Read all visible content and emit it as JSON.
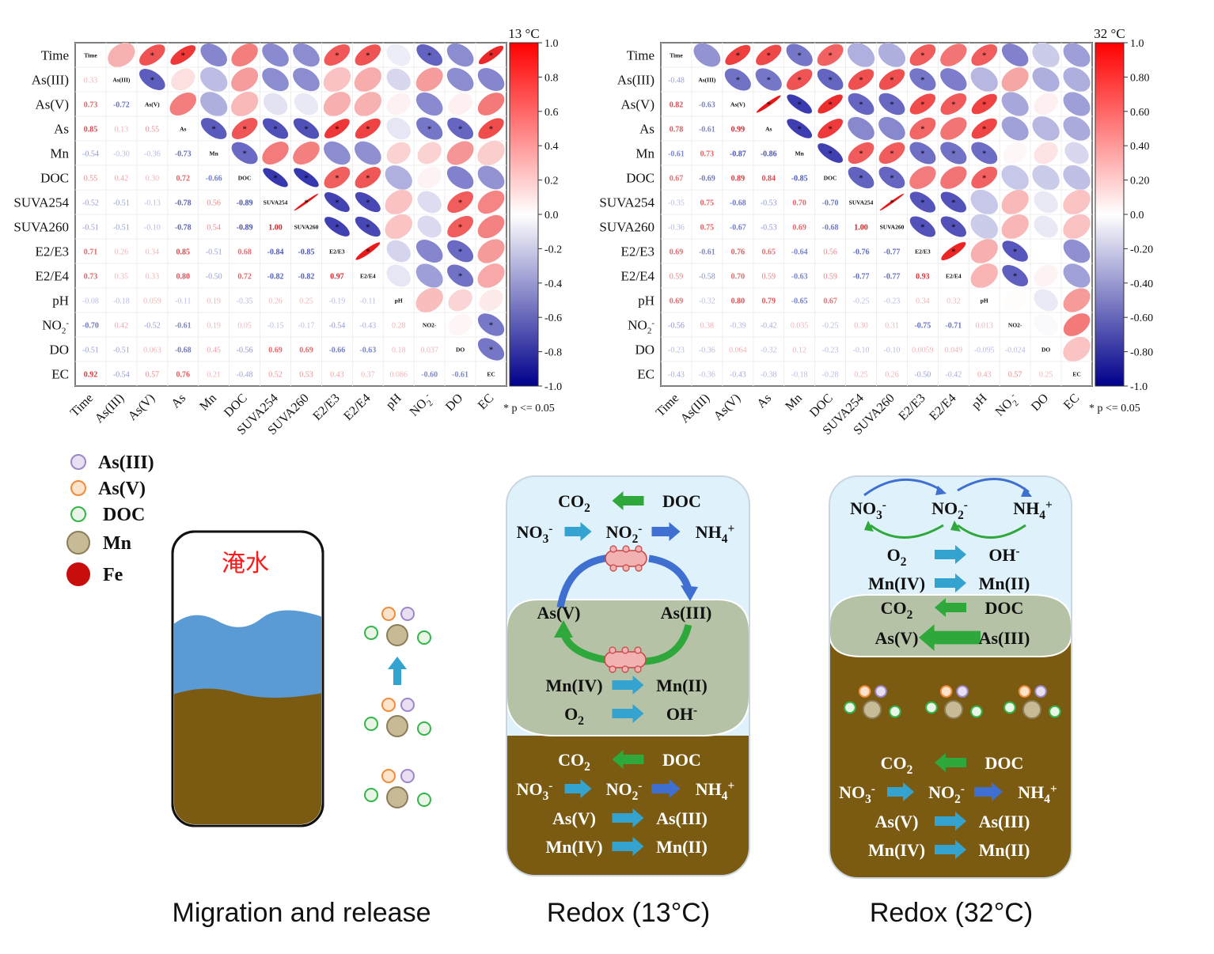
{
  "variables": [
    "Time",
    "As(III)",
    "As(V)",
    "As",
    "Mn",
    "DOC",
    "SUVA254",
    "SUVA260",
    "E2/E3",
    "E2/E4",
    "pH",
    "NO2-",
    "DO",
    "EC"
  ],
  "significance_note": "* p <= 0.05",
  "colors": {
    "positive": "#e8151b",
    "negative": "#1c2ab4",
    "water": "#5b9bd5",
    "soil": "#7b5b12",
    "sky": "#dff1fb",
    "mix": "#b5c2a6",
    "blue_arrow": "#35a3cf",
    "green_arrow": "#2ea83a",
    "dark_arrow": "#3f6fd1"
  },
  "chart_data": [
    {
      "type": "heatmap",
      "title": "13 °C",
      "colorbar_ticks": [
        "1.0",
        "0.8",
        "0.6",
        "0.4",
        "0.2",
        "0.0",
        "-0.2",
        "-0.4",
        "-0.6",
        "-0.8",
        "-1.0"
      ],
      "clim": [
        -1,
        1
      ],
      "lower": [
        [
          0.33
        ],
        [
          0.73,
          -0.72
        ],
        [
          0.85,
          0.13,
          0.55
        ],
        [
          -0.54,
          -0.3,
          -0.36,
          -0.73
        ],
        [
          0.55,
          0.42,
          0.3,
          0.72,
          -0.66
        ],
        [
          -0.52,
          -0.51,
          -0.13,
          -0.78,
          0.56,
          -0.89
        ],
        [
          -0.51,
          -0.51,
          -0.1,
          -0.78,
          0.54,
          -0.89,
          1.0
        ],
        [
          0.71,
          0.26,
          0.34,
          0.85,
          -0.51,
          0.68,
          -0.84,
          -0.85
        ],
        [
          0.73,
          0.35,
          0.33,
          0.8,
          -0.5,
          0.72,
          -0.82,
          -0.82,
          0.97
        ],
        [
          -0.08,
          -0.18,
          0.059,
          -0.11,
          0.19,
          -0.35,
          0.26,
          0.25,
          -0.19,
          -0.11
        ],
        [
          -0.7,
          0.42,
          -0.52,
          -0.61,
          0.19,
          0.05,
          -0.15,
          -0.17,
          -0.54,
          -0.43,
          0.28
        ],
        [
          -0.51,
          -0.51,
          0.063,
          -0.68,
          0.45,
          -0.56,
          0.69,
          0.69,
          -0.66,
          -0.63,
          0.18,
          0.037
        ],
        [
          0.92,
          -0.54,
          0.57,
          0.76,
          0.21,
          -0.48,
          0.52,
          0.53,
          0.43,
          0.37,
          0.086,
          -0.6,
          -0.61
        ]
      ]
    },
    {
      "type": "heatmap",
      "title": "32 °C",
      "colorbar_ticks": [
        "1.0",
        "0.80",
        "0.60",
        "0.40",
        "0.20",
        "0.0",
        "-0.20",
        "-0.40",
        "-0.60",
        "-0.80",
        "-1.0"
      ],
      "clim": [
        -1,
        1
      ],
      "lower": [
        [
          -0.48
        ],
        [
          0.82,
          -0.63
        ],
        [
          0.78,
          -0.61,
          0.99
        ],
        [
          -0.61,
          0.73,
          -0.87,
          -0.86
        ],
        [
          0.67,
          -0.69,
          0.89,
          0.84,
          -0.85
        ],
        [
          -0.35,
          0.75,
          -0.68,
          -0.53,
          0.7,
          -0.7
        ],
        [
          -0.36,
          0.75,
          -0.67,
          -0.53,
          0.69,
          -0.68,
          1.0
        ],
        [
          0.69,
          -0.61,
          0.76,
          0.65,
          -0.64,
          0.56,
          -0.76,
          -0.77
        ],
        [
          0.59,
          -0.58,
          0.7,
          0.59,
          -0.63,
          0.59,
          -0.77,
          -0.77,
          0.93
        ],
        [
          0.69,
          -0.32,
          0.8,
          0.79,
          -0.65,
          0.67,
          -0.25,
          -0.23,
          0.34,
          0.32
        ],
        [
          -0.56,
          0.38,
          -0.39,
          -0.42,
          0.035,
          -0.25,
          0.3,
          0.31,
          -0.75,
          -0.71,
          0.013
        ],
        [
          -0.23,
          -0.36,
          0.064,
          -0.32,
          0.12,
          -0.23,
          -0.1,
          -0.1,
          0.0059,
          0.049,
          -0.095,
          -0.024
        ],
        [
          -0.43,
          -0.36,
          -0.43,
          -0.38,
          -0.18,
          -0.28,
          0.25,
          0.26,
          -0.5,
          -0.42,
          0.43,
          0.57,
          0.25
        ]
      ]
    }
  ],
  "legend": [
    {
      "label": "As(III)",
      "fill": "#e8e0f2",
      "stroke": "#9c88c8",
      "size": "small"
    },
    {
      "label": "As(V)",
      "fill": "#fde3cc",
      "stroke": "#f08b3a",
      "size": "small"
    },
    {
      "label": "DOC",
      "fill": "#eaf5e8",
      "stroke": "#33b54a",
      "size": "small"
    },
    {
      "label": "Mn",
      "fill": "#c6bb96",
      "stroke": "#8c7d58",
      "size": "large"
    },
    {
      "label": "Fe",
      "fill": "#c80d0d",
      "stroke": "#c80d0d",
      "size": "large"
    }
  ],
  "tank_label": "淹水",
  "captions": {
    "migration": "Migration and release",
    "redox13": "Redox (13°C)",
    "redox32": "Redox (32°C)"
  },
  "redox13": {
    "top": [
      {
        "left": "CO2",
        "arrow": "green-left",
        "right": "DOC"
      },
      {
        "left": "NO3-",
        "arrow": "blue-right",
        "mid": "NO2-",
        "arrow2": "dark-right",
        "right": "NH4+"
      }
    ],
    "cycle": {
      "left": "As(V)",
      "right": "As(III)"
    },
    "middle": [
      {
        "left": "Mn(IV)",
        "arrow": "blue-right",
        "right": "Mn(II)"
      },
      {
        "left": "O2",
        "arrow": "blue-right",
        "right": "OH-"
      }
    ],
    "bottom": [
      {
        "left": "CO2",
        "arrow": "green-left",
        "right": "DOC"
      },
      {
        "left": "NO3-",
        "arrow": "blue-right",
        "mid": "NO2-",
        "arrow2": "dark-right",
        "right": "NH4+"
      },
      {
        "left": "As(V)",
        "arrow": "blue-right",
        "right": "As(III)"
      },
      {
        "left": "Mn(IV)",
        "arrow": "blue-right",
        "right": "Mn(II)"
      }
    ]
  },
  "redox32": {
    "nitrogen_cycle": [
      "NO3-",
      "NO2-",
      "NH4+"
    ],
    "top": [
      {
        "left": "O2",
        "arrow": "blue-right",
        "right": "OH-"
      },
      {
        "left": "Mn(IV)",
        "arrow": "blue-right",
        "right": "Mn(II)"
      }
    ],
    "middle": [
      {
        "left": "CO2",
        "arrow": "green-left",
        "right": "DOC"
      },
      {
        "left": "As(V)",
        "arrow": "green-left-big",
        "right": "As(III)"
      }
    ],
    "bottom": [
      {
        "left": "CO2",
        "arrow": "green-left",
        "right": "DOC"
      },
      {
        "left": "NO3-",
        "arrow": "blue-right",
        "mid": "NO2-",
        "arrow2": "dark-right",
        "right": "NH4+"
      },
      {
        "left": "As(V)",
        "arrow": "blue-right",
        "right": "As(III)"
      },
      {
        "left": "Mn(IV)",
        "arrow": "blue-right",
        "right": "Mn(II)"
      }
    ]
  }
}
